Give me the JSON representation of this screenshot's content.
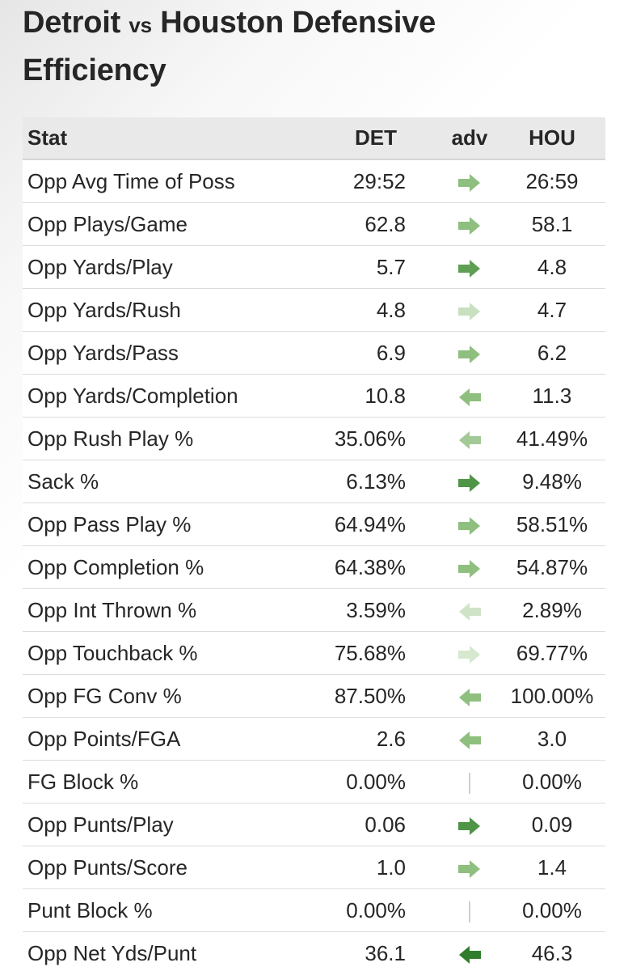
{
  "title": {
    "team_a": "Detroit",
    "vs": "vs",
    "team_b_heading": "Houston Defensive",
    "line2": "Efficiency"
  },
  "table": {
    "headers": {
      "stat": "Stat",
      "det": "DET",
      "adv": "adv",
      "hou": "HOU"
    },
    "rows": [
      {
        "stat": "Opp Avg Time of Poss",
        "det": "29:52",
        "hou": "26:59",
        "adv": "right",
        "color": "#8fbf7f"
      },
      {
        "stat": "Opp Plays/Game",
        "det": "62.8",
        "hou": "58.1",
        "adv": "right",
        "color": "#8fbf7f"
      },
      {
        "stat": "Opp Yards/Play",
        "det": "5.7",
        "hou": "4.8",
        "adv": "right",
        "color": "#5e9f53"
      },
      {
        "stat": "Opp Yards/Rush",
        "det": "4.8",
        "hou": "4.7",
        "adv": "right",
        "color": "#c8e0bf"
      },
      {
        "stat": "Opp Yards/Pass",
        "det": "6.9",
        "hou": "6.2",
        "adv": "right",
        "color": "#8fbf7f"
      },
      {
        "stat": "Opp Yards/Completion",
        "det": "10.8",
        "hou": "11.3",
        "adv": "left",
        "color": "#8fbf7f"
      },
      {
        "stat": "Opp Rush Play %",
        "det": "35.06%",
        "hou": "41.49%",
        "adv": "left",
        "color": "#a3c997"
      },
      {
        "stat": "Sack %",
        "det": "6.13%",
        "hou": "9.48%",
        "adv": "right",
        "color": "#4f9447"
      },
      {
        "stat": "Opp Pass Play %",
        "det": "64.94%",
        "hou": "58.51%",
        "adv": "right",
        "color": "#8fbf7f"
      },
      {
        "stat": "Opp Completion %",
        "det": "64.38%",
        "hou": "54.87%",
        "adv": "right",
        "color": "#8fbf7f"
      },
      {
        "stat": "Opp Int Thrown %",
        "det": "3.59%",
        "hou": "2.89%",
        "adv": "left",
        "color": "#cfe4c6"
      },
      {
        "stat": "Opp Touchback %",
        "det": "75.68%",
        "hou": "69.77%",
        "adv": "right",
        "color": "#d6e8ce"
      },
      {
        "stat": "Opp FG Conv %",
        "det": "87.50%",
        "hou": "100.00%",
        "adv": "left",
        "color": "#8fbf7f"
      },
      {
        "stat": "Opp Points/FGA",
        "det": "2.6",
        "hou": "3.0",
        "adv": "left",
        "color": "#8fbf7f"
      },
      {
        "stat": "FG Block %",
        "det": "0.00%",
        "hou": "0.00%",
        "adv": "none",
        "color": "#cfcfcf"
      },
      {
        "stat": "Opp Punts/Play",
        "det": "0.06",
        "hou": "0.09",
        "adv": "right",
        "color": "#4f9447"
      },
      {
        "stat": "Opp Punts/Score",
        "det": "1.0",
        "hou": "1.4",
        "adv": "right",
        "color": "#8fbf7f"
      },
      {
        "stat": "Punt Block %",
        "det": "0.00%",
        "hou": "0.00%",
        "adv": "none",
        "color": "#cfcfcf"
      },
      {
        "stat": "Opp Net Yds/Punt",
        "det": "36.1",
        "hou": "46.3",
        "adv": "left",
        "color": "#2f7d2c"
      }
    ]
  }
}
